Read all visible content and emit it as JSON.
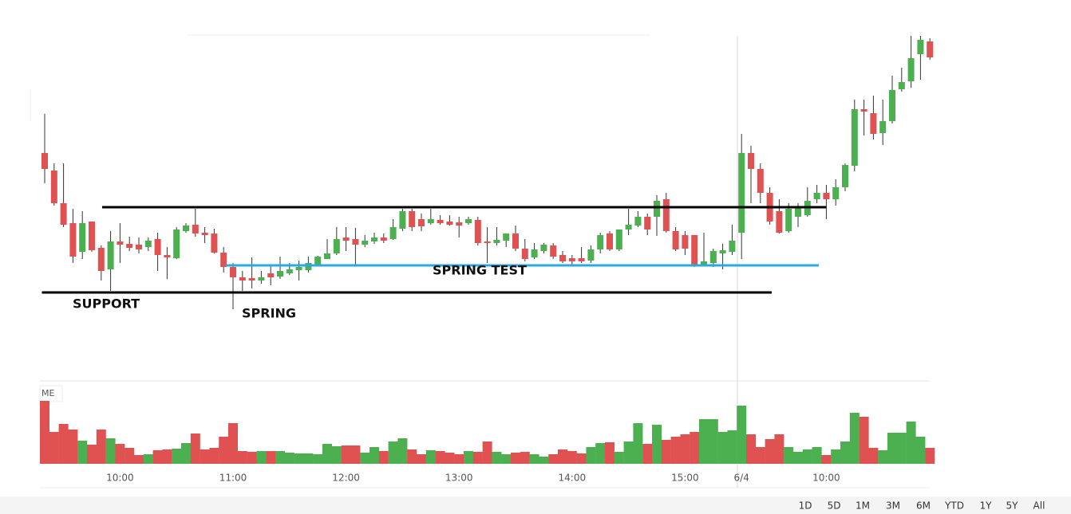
{
  "chart_data": {
    "type": "candlestick",
    "categories": [
      null,
      null,
      null,
      null,
      null,
      null,
      null,
      null,
      "10:00",
      null,
      null,
      null,
      null,
      null,
      null,
      null,
      null,
      null,
      null,
      null,
      "11:00",
      null,
      null,
      null,
      null,
      null,
      null,
      null,
      null,
      null,
      null,
      null,
      "12:00",
      null,
      null,
      null,
      null,
      null,
      null,
      null,
      null,
      null,
      null,
      null,
      "13:00",
      null,
      null,
      null,
      null,
      null,
      null,
      null,
      null,
      null,
      null,
      null,
      "14:00",
      null,
      null,
      null,
      null,
      null,
      null,
      null,
      null,
      null,
      null,
      null,
      "15:00",
      null,
      null,
      null,
      null,
      null,
      "6/4",
      null,
      null,
      null,
      null,
      null,
      null,
      null,
      null,
      "10:00",
      null,
      null,
      null,
      null,
      null,
      null,
      null,
      null,
      null,
      null,
      null
    ],
    "open": [
      288,
      266,
      225,
      200,
      164,
      202,
      169,
      142,
      177,
      174,
      173,
      170,
      180,
      160,
      156,
      190,
      198,
      188,
      187,
      163,
      145,
      132,
      131,
      128,
      137,
      133,
      137,
      141,
      141,
      147,
      155,
      162,
      182,
      180,
      173,
      177,
      182,
      180,
      193,
      215,
      205,
      200,
      204,
      202,
      201,
      200,
      204,
      177,
      175,
      178,
      187,
      168,
      157,
      165,
      172,
      160,
      156,
      156,
      153,
      167,
      187,
      167,
      192,
      197,
      208,
      208,
      230,
      190,
      185,
      185,
      148,
      150,
      162,
      164,
      188,
      288,
      268,
      238,
      215,
      190,
      208,
      210,
      230,
      238,
      230,
      245,
      272,
      343,
      338,
      313,
      328,
      368,
      378,
      412,
      428
    ],
    "high": [
      337,
      275,
      275,
      218,
      215,
      202,
      172,
      190,
      200,
      183,
      182,
      182,
      188,
      170,
      195,
      200,
      218,
      195,
      193,
      170,
      150,
      140,
      157,
      140,
      147,
      158,
      150,
      153,
      158,
      159,
      180,
      195,
      195,
      194,
      185,
      188,
      187,
      205,
      218,
      218,
      212,
      218,
      210,
      210,
      208,
      208,
      208,
      195,
      195,
      187,
      197,
      180,
      175,
      175,
      175,
      165,
      160,
      170,
      172,
      188,
      190,
      192,
      218,
      215,
      212,
      235,
      238,
      195,
      190,
      185,
      188,
      168,
      174,
      198,
      312,
      297,
      275,
      245,
      230,
      225,
      225,
      245,
      248,
      248,
      255,
      275,
      355,
      355,
      360,
      355,
      385,
      395,
      435,
      435,
      432
    ],
    "low": [
      250,
      222,
      195,
      150,
      155,
      164,
      128,
      115,
      150,
      165,
      162,
      165,
      140,
      130,
      155,
      188,
      183,
      175,
      162,
      138,
      92,
      115,
      118,
      124,
      122,
      130,
      135,
      128,
      138,
      146,
      155,
      160,
      165,
      147,
      170,
      174,
      175,
      179,
      190,
      190,
      190,
      198,
      198,
      197,
      182,
      198,
      172,
      150,
      172,
      170,
      165,
      152,
      155,
      162,
      155,
      150,
      146,
      150,
      150,
      162,
      165,
      165,
      185,
      195,
      185,
      184,
      188,
      165,
      160,
      145,
      147,
      145,
      142,
      160,
      155,
      225,
      225,
      198,
      187,
      188,
      195,
      208,
      225,
      205,
      222,
      240,
      265,
      310,
      305,
      298,
      325,
      365,
      370,
      380,
      405
    ],
    "close": [
      268,
      225,
      198,
      158,
      200,
      166,
      140,
      177,
      173,
      169,
      167,
      178,
      160,
      157,
      192,
      197,
      187,
      185,
      163,
      145,
      132,
      128,
      128,
      132,
      132,
      140,
      142,
      145,
      150,
      158,
      162,
      180,
      178,
      173,
      178,
      182,
      178,
      195,
      215,
      195,
      196,
      205,
      200,
      198,
      197,
      205,
      175,
      175,
      179,
      187,
      168,
      155,
      167,
      173,
      158,
      152,
      152,
      152,
      167,
      185,
      167,
      192,
      198,
      208,
      192,
      228,
      190,
      167,
      168,
      148,
      152,
      165,
      166,
      178,
      288,
      268,
      238,
      202,
      188,
      218,
      220,
      228,
      238,
      230,
      245,
      273,
      343,
      340,
      312,
      328,
      367,
      377,
      407,
      430,
      408
    ],
    "volume": [
      79,
      40,
      50,
      43,
      29,
      24,
      43,
      32,
      25,
      20,
      11,
      12,
      17,
      18,
      19,
      26,
      38,
      18,
      20,
      34,
      51,
      16,
      15,
      16,
      16,
      16,
      14,
      13,
      13,
      12,
      25,
      22,
      23,
      23,
      14,
      21,
      16,
      28,
      32,
      18,
      12,
      17,
      16,
      14,
      12,
      16,
      15,
      28,
      15,
      12,
      14,
      15,
      12,
      9,
      12,
      18,
      16,
      13,
      21,
      26,
      27,
      15,
      28,
      51,
      25,
      49,
      30,
      34,
      37,
      40,
      56,
      56,
      40,
      42,
      73,
      37,
      21,
      31,
      37,
      21,
      15,
      18,
      21,
      11,
      18,
      28,
      64,
      59,
      20,
      17,
      39,
      39,
      53,
      34,
      20
    ],
    "ylim": [
      0,
      440
    ],
    "volume_ylim": [
      0,
      100
    ],
    "up_color": "#4caf50",
    "down_color": "#e05252",
    "volume_label": "ME",
    "lines": [
      {
        "value": 220,
        "color": "#000000",
        "start": 6.1,
        "end": 83.0
      },
      {
        "value": 147,
        "color": "#29abe2",
        "start": 19.2,
        "end": 82.2
      },
      {
        "value": 113,
        "color": "#000000",
        "start": -0.3,
        "end": 77.2
      }
    ],
    "annotations": [
      {
        "text": "SUPPORT"
      },
      {
        "text": "SPRING"
      },
      {
        "text": "SPRING TEST"
      }
    ]
  },
  "range_buttons": [
    "1D",
    "5D",
    "1M",
    "3M",
    "6M",
    "YTD",
    "1Y",
    "5Y",
    "All"
  ]
}
